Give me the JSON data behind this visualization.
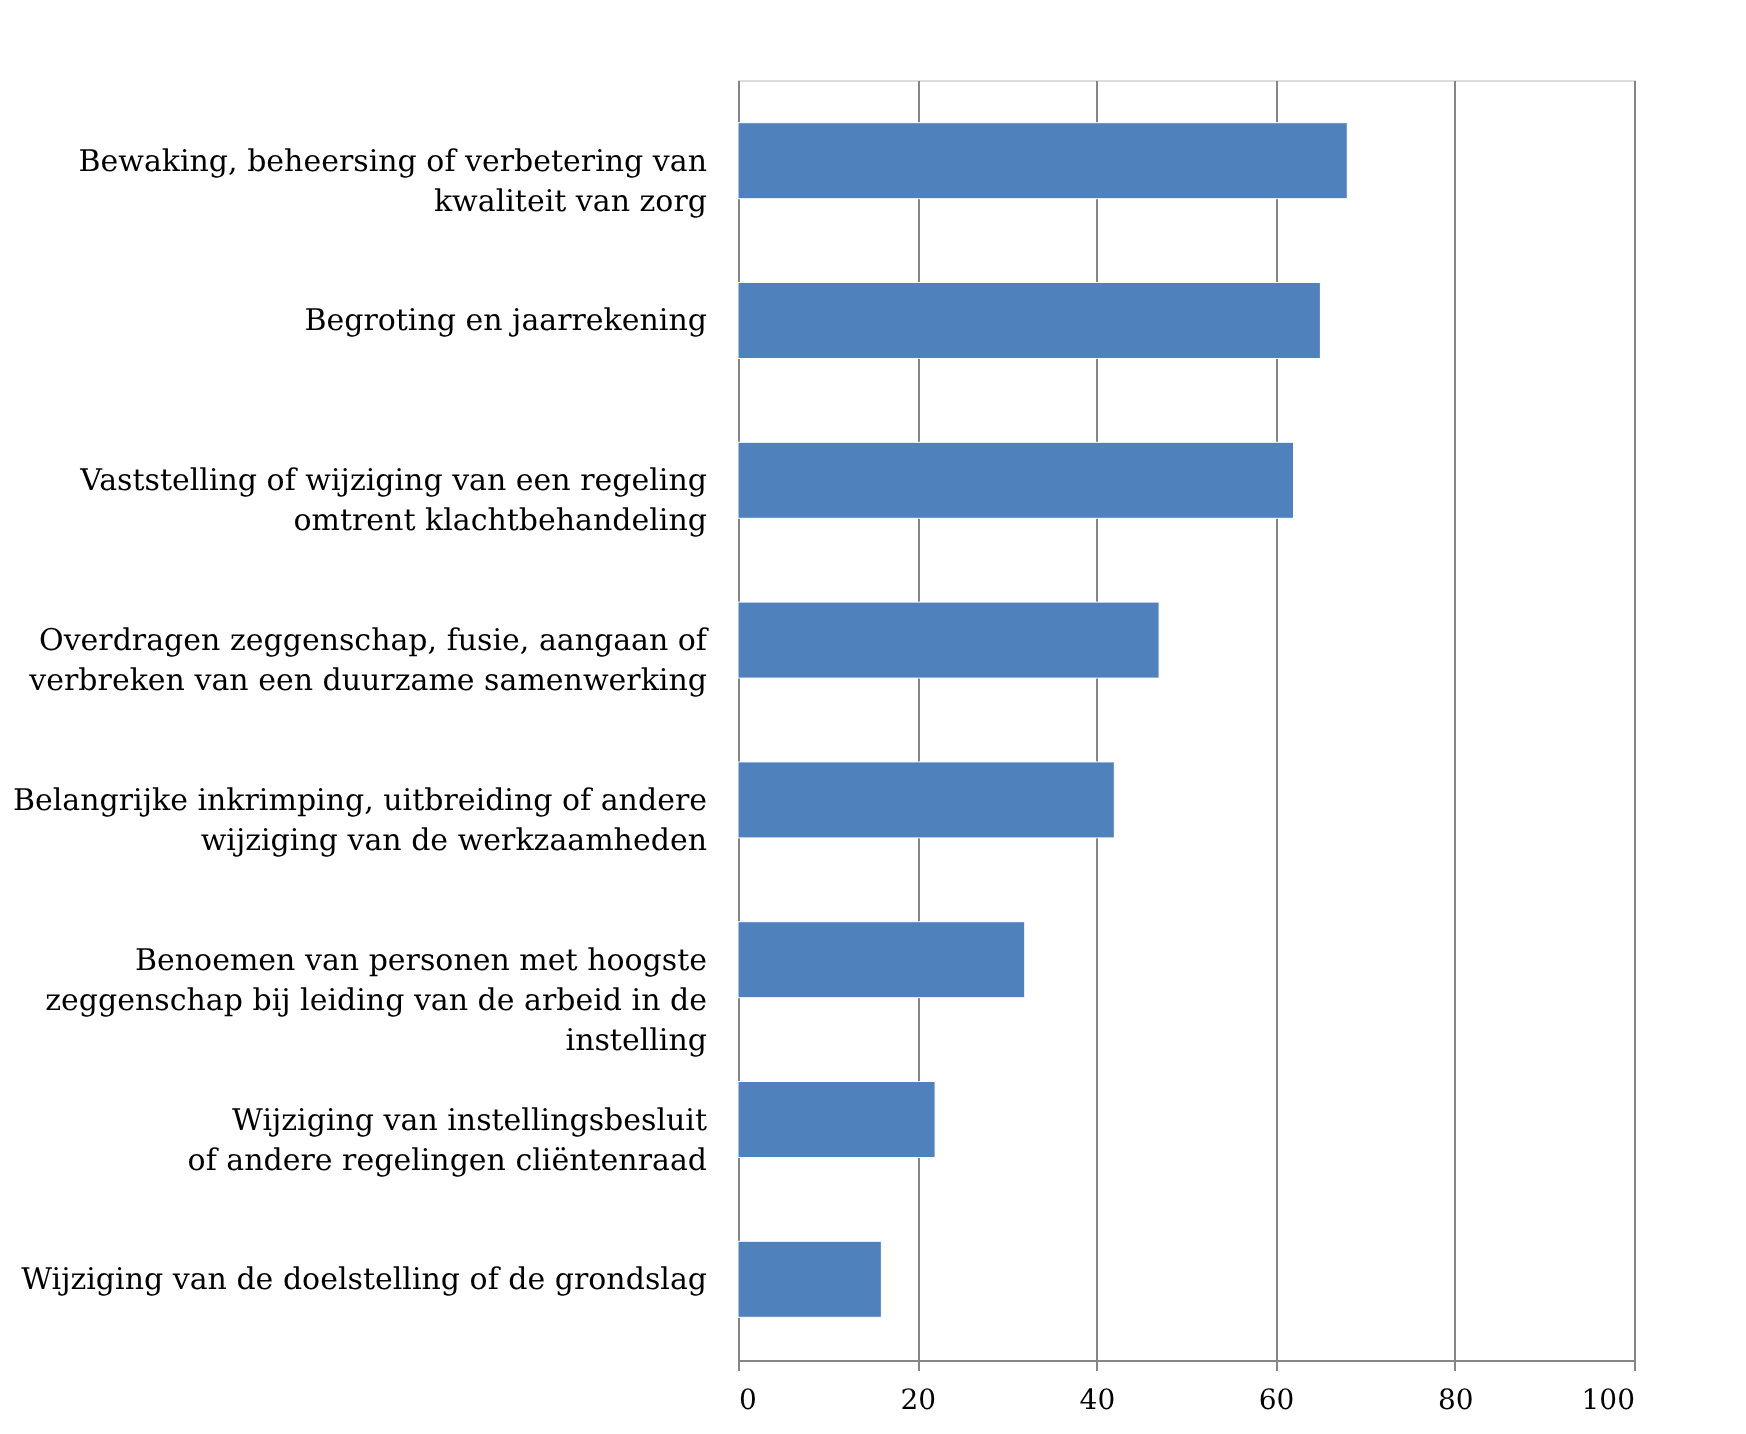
{
  "chart_data": {
    "type": "bar",
    "orientation": "horizontal",
    "categories": [
      "Bewaking, beheersing of verbetering van\nkwaliteit van zorg",
      "Begroting en jaarrekening",
      "Vaststelling of wijziging van een regeling\nomtrent klachtbehandeling",
      "Overdragen zeggenschap, fusie, aangaan of\nverbreken van een duurzame samenwerking",
      "Belangrijke inkrimping, uitbreiding of andere\nwijziging van de werkzaamheden",
      "Benoemen van personen met hoogste\nzeggenschap bij leiding van de arbeid in de\ninstelling",
      "Wijziging van instellingsbesluit\nof andere regelingen cliëntenraad",
      "Wijziging van de doelstelling of de grondslag"
    ],
    "values": [
      68,
      65,
      62,
      47,
      42,
      32,
      22,
      16
    ],
    "color": "#4f81bd",
    "xlim": [
      0,
      100
    ],
    "xticks": [
      0,
      20,
      40,
      60,
      80,
      100
    ],
    "grid": "x"
  }
}
